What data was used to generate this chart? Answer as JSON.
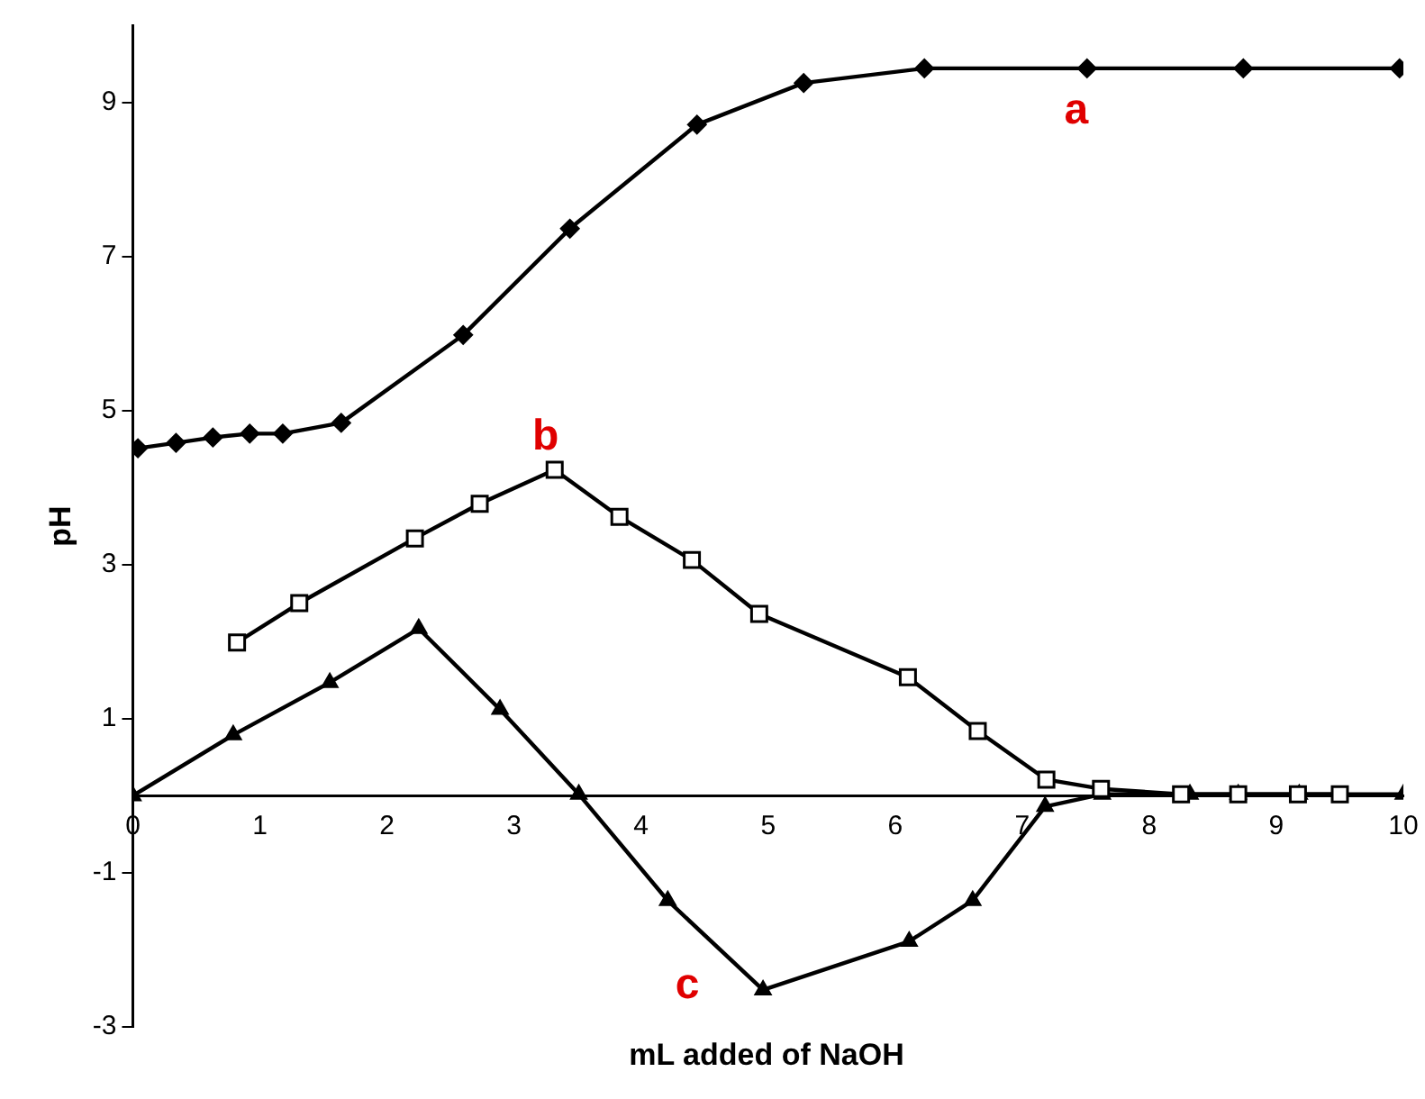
{
  "chart_data": {
    "type": "line",
    "xlabel": "mL added of NaOH",
    "ylabel": "pH",
    "xlim": [
      0,
      10
    ],
    "xticks": [
      0,
      1,
      2,
      3,
      4,
      5,
      6,
      7,
      8,
      9,
      10
    ],
    "ylim": [
      -3,
      10
    ],
    "yticks": [
      -3,
      -1,
      1,
      3,
      5,
      7,
      9
    ],
    "grid": false,
    "legend": false,
    "series": [
      {
        "name": "a",
        "color": "#000000",
        "marker": "diamond",
        "x": [
          0.04,
          0.34,
          0.63,
          0.92,
          1.18,
          1.64,
          2.6,
          3.44,
          4.44,
          5.28,
          6.23,
          7.51,
          8.74,
          9.97
        ],
        "values": [
          4.51,
          4.58,
          4.65,
          4.7,
          4.7,
          4.84,
          5.98,
          7.36,
          8.71,
          9.25,
          9.44,
          9.44,
          9.44,
          9.44
        ]
      },
      {
        "name": "b",
        "color": "#000000",
        "marker": "square",
        "x": [
          0.82,
          1.31,
          2.22,
          2.73,
          3.32,
          3.83,
          4.4,
          4.93,
          6.1,
          6.65,
          7.19,
          7.62,
          8.25,
          8.7,
          9.17,
          9.5
        ],
        "values": [
          1.99,
          2.5,
          3.34,
          3.79,
          4.23,
          3.62,
          3.06,
          2.36,
          1.54,
          0.84,
          0.21,
          0.09,
          0.02,
          0.02,
          0.02,
          0.02
        ]
      },
      {
        "name": "c",
        "color": "#000000",
        "marker": "triangle",
        "x": [
          0,
          0.79,
          1.55,
          2.25,
          2.89,
          3.51,
          4.21,
          4.96,
          6.11,
          6.61,
          7.18,
          7.63,
          8.32,
          8.7,
          9.18,
          10
        ],
        "values": [
          0,
          0.79,
          1.47,
          2.17,
          1.12,
          0.02,
          -1.36,
          -2.52,
          -1.89,
          -1.36,
          -0.14,
          0.02,
          0.02,
          0.02,
          0.02,
          0.02
        ]
      }
    ]
  }
}
